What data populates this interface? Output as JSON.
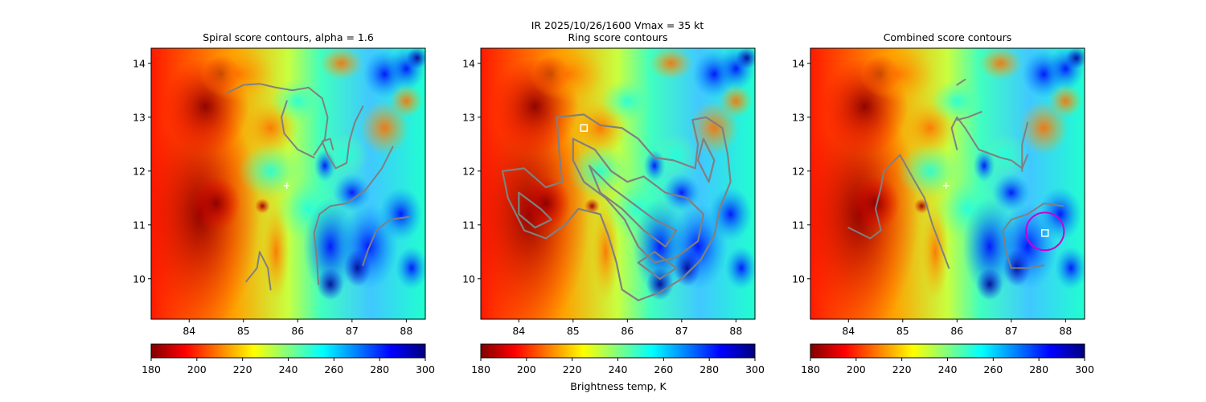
{
  "figure": {
    "suptitle_line1": "IR  2025/10/26/1600    Vmax = 35 kt",
    "colorbar_label": "Brightness temp, K"
  },
  "colormap": {
    "name": "jet_r",
    "stops": [
      "#800000",
      "#ff0000",
      "#ff8000",
      "#ffff00",
      "#80ff80",
      "#00ffff",
      "#0080ff",
      "#0000ff",
      "#000080"
    ]
  },
  "colors": {
    "contour": "#808080",
    "marker_white": "#ffffff",
    "circle_magenta": "#cc00cc"
  },
  "chart_data": [
    {
      "type": "heatmap",
      "title": "Spiral score contours, alpha =  1.6",
      "xlim": [
        83.3,
        88.35
      ],
      "ylim": [
        9.25,
        14.28
      ],
      "xticks": [
        84,
        85,
        86,
        87,
        88
      ],
      "yticks": [
        10,
        11,
        12,
        13,
        14
      ],
      "colorbar": {
        "range": [
          180,
          300
        ],
        "ticks": [
          180,
          200,
          220,
          240,
          260,
          280,
          300
        ]
      },
      "markers": [
        {
          "kind": "plus",
          "x": 85.8,
          "y": 11.73
        }
      ],
      "contours": [
        [
          [
            84.7,
            13.45
          ],
          [
            85.0,
            13.6
          ],
          [
            85.3,
            13.62
          ],
          [
            85.6,
            13.55
          ],
          [
            85.9,
            13.5
          ],
          [
            86.2,
            13.55
          ],
          [
            86.45,
            13.35
          ],
          [
            86.55,
            13.0
          ],
          [
            86.5,
            12.6
          ],
          [
            86.3,
            12.3
          ]
        ],
        [
          [
            85.8,
            13.3
          ],
          [
            85.7,
            13.0
          ],
          [
            85.75,
            12.7
          ],
          [
            86.0,
            12.4
          ],
          [
            86.3,
            12.25
          ]
        ],
        [
          [
            87.2,
            13.2
          ],
          [
            87.05,
            12.9
          ],
          [
            86.95,
            12.55
          ],
          [
            86.9,
            12.15
          ],
          [
            86.7,
            12.05
          ],
          [
            86.55,
            12.3
          ],
          [
            86.45,
            12.55
          ],
          [
            86.6,
            12.6
          ],
          [
            86.65,
            12.4
          ]
        ],
        [
          [
            87.75,
            12.45
          ],
          [
            87.55,
            12.05
          ],
          [
            87.25,
            11.65
          ],
          [
            86.9,
            11.4
          ],
          [
            86.6,
            11.35
          ],
          [
            86.4,
            11.2
          ],
          [
            86.3,
            10.85
          ],
          [
            86.35,
            10.4
          ],
          [
            86.38,
            9.9
          ]
        ],
        [
          [
            88.05,
            11.15
          ],
          [
            87.7,
            11.1
          ],
          [
            87.45,
            10.9
          ],
          [
            87.3,
            10.55
          ],
          [
            87.2,
            10.25
          ]
        ],
        [
          [
            85.3,
            10.5
          ],
          [
            85.25,
            10.2
          ],
          [
            85.05,
            9.95
          ]
        ],
        [
          [
            85.3,
            10.5
          ],
          [
            85.45,
            10.2
          ],
          [
            85.5,
            9.8
          ]
        ]
      ]
    },
    {
      "type": "heatmap",
      "title": "Ring score contours",
      "xlim": [
        83.3,
        88.35
      ],
      "ylim": [
        9.25,
        14.28
      ],
      "xticks": [
        84,
        85,
        86,
        87,
        88
      ],
      "yticks": [
        10,
        11,
        12,
        13,
        14
      ],
      "colorbar": {
        "range": [
          180,
          300
        ],
        "ticks": [
          180,
          200,
          220,
          240,
          260,
          280,
          300
        ]
      },
      "markers": [
        {
          "kind": "square",
          "x": 85.2,
          "y": 12.8
        }
      ],
      "contours": [
        [
          [
            84.7,
            13.0
          ],
          [
            85.2,
            13.05
          ],
          [
            85.5,
            12.85
          ],
          [
            85.9,
            12.8
          ],
          [
            86.2,
            12.6
          ],
          [
            86.5,
            12.25
          ],
          [
            86.85,
            12.2
          ],
          [
            87.25,
            12.05
          ],
          [
            87.3,
            12.5
          ],
          [
            87.2,
            12.95
          ],
          [
            87.45,
            13.0
          ],
          [
            87.75,
            12.8
          ],
          [
            87.85,
            12.3
          ],
          [
            87.9,
            11.8
          ],
          [
            87.7,
            11.3
          ],
          [
            87.6,
            10.8
          ],
          [
            87.35,
            10.35
          ],
          [
            87.0,
            10.0
          ],
          [
            86.6,
            9.75
          ],
          [
            86.2,
            9.6
          ],
          [
            85.9,
            9.8
          ],
          [
            85.8,
            10.3
          ],
          [
            85.65,
            10.8
          ],
          [
            85.5,
            11.2
          ],
          [
            85.1,
            11.3
          ],
          [
            84.85,
            11.0
          ],
          [
            84.5,
            10.75
          ],
          [
            84.1,
            10.9
          ],
          [
            83.8,
            11.5
          ],
          [
            83.7,
            12.0
          ],
          [
            84.1,
            12.05
          ],
          [
            84.5,
            11.7
          ],
          [
            84.8,
            11.8
          ],
          [
            84.75,
            12.3
          ],
          [
            84.7,
            13.0
          ]
        ],
        [
          [
            85.0,
            12.6
          ],
          [
            85.4,
            12.4
          ],
          [
            85.7,
            12.0
          ],
          [
            86.0,
            11.8
          ],
          [
            86.3,
            11.9
          ],
          [
            86.7,
            11.6
          ],
          [
            87.1,
            11.5
          ],
          [
            87.4,
            11.2
          ],
          [
            87.3,
            10.7
          ],
          [
            86.9,
            10.4
          ],
          [
            86.5,
            10.3
          ],
          [
            86.2,
            10.6
          ],
          [
            85.95,
            11.1
          ],
          [
            85.6,
            11.5
          ],
          [
            85.2,
            11.8
          ],
          [
            85.0,
            12.2
          ],
          [
            85.0,
            12.6
          ]
        ],
        [
          [
            85.3,
            12.1
          ],
          [
            85.7,
            11.7
          ],
          [
            86.1,
            11.4
          ],
          [
            86.5,
            11.1
          ],
          [
            86.9,
            10.9
          ],
          [
            86.7,
            10.6
          ],
          [
            86.3,
            10.9
          ],
          [
            85.9,
            11.3
          ],
          [
            85.5,
            11.6
          ],
          [
            85.3,
            12.1
          ]
        ],
        [
          [
            84.0,
            11.6
          ],
          [
            84.4,
            11.3
          ],
          [
            84.6,
            11.1
          ],
          [
            84.3,
            10.95
          ],
          [
            84.0,
            11.2
          ],
          [
            84.0,
            11.6
          ]
        ],
        [
          [
            87.4,
            12.6
          ],
          [
            87.6,
            12.2
          ],
          [
            87.5,
            11.8
          ],
          [
            87.3,
            12.2
          ],
          [
            87.4,
            12.6
          ]
        ],
        [
          [
            86.2,
            10.3
          ],
          [
            86.6,
            10.0
          ],
          [
            86.9,
            10.2
          ],
          [
            86.5,
            10.5
          ],
          [
            86.2,
            10.3
          ]
        ]
      ]
    },
    {
      "type": "heatmap",
      "title": "Combined score contours",
      "xlim": [
        83.3,
        88.35
      ],
      "ylim": [
        9.25,
        14.28
      ],
      "xticks": [
        84,
        85,
        86,
        87,
        88
      ],
      "yticks": [
        10,
        11,
        12,
        13,
        14
      ],
      "colorbar": {
        "range": [
          180,
          300
        ],
        "ticks": [
          180,
          200,
          220,
          240,
          260,
          280,
          300
        ]
      },
      "markers": [
        {
          "kind": "plus",
          "x": 85.8,
          "y": 11.73
        },
        {
          "kind": "square",
          "x": 87.62,
          "y": 10.85
        },
        {
          "kind": "circle",
          "x": 87.62,
          "y": 10.88,
          "r": 0.35
        }
      ],
      "contours": [
        [
          [
            84.95,
            12.3
          ],
          [
            84.65,
            12.0
          ],
          [
            84.6,
            11.7
          ],
          [
            84.5,
            11.3
          ],
          [
            84.6,
            10.9
          ],
          [
            84.4,
            10.75
          ],
          [
            84.0,
            10.95
          ]
        ],
        [
          [
            84.95,
            12.3
          ],
          [
            85.2,
            11.85
          ],
          [
            85.4,
            11.5
          ],
          [
            85.55,
            11.0
          ],
          [
            85.7,
            10.6
          ],
          [
            85.85,
            10.2
          ]
        ],
        [
          [
            86.0,
            12.4
          ],
          [
            85.9,
            12.8
          ],
          [
            86.0,
            13.0
          ],
          [
            86.15,
            12.8
          ],
          [
            86.4,
            12.4
          ],
          [
            86.8,
            12.25
          ],
          [
            87.0,
            12.2
          ],
          [
            87.2,
            12.05
          ],
          [
            87.3,
            12.3
          ]
        ],
        [
          [
            86.45,
            13.1
          ],
          [
            86.2,
            13.0
          ],
          [
            86.0,
            12.95
          ]
        ],
        [
          [
            87.3,
            12.9
          ],
          [
            87.2,
            12.5
          ],
          [
            87.2,
            12.0
          ]
        ],
        [
          [
            87.95,
            11.35
          ],
          [
            87.6,
            11.4
          ],
          [
            87.3,
            11.2
          ],
          [
            87.0,
            11.1
          ],
          [
            86.85,
            10.9
          ],
          [
            86.9,
            10.5
          ],
          [
            87.0,
            10.2
          ]
        ],
        [
          [
            87.6,
            10.25
          ],
          [
            87.3,
            10.2
          ],
          [
            87.0,
            10.2
          ]
        ],
        [
          [
            86.0,
            13.6
          ],
          [
            86.15,
            13.7
          ]
        ]
      ]
    }
  ]
}
